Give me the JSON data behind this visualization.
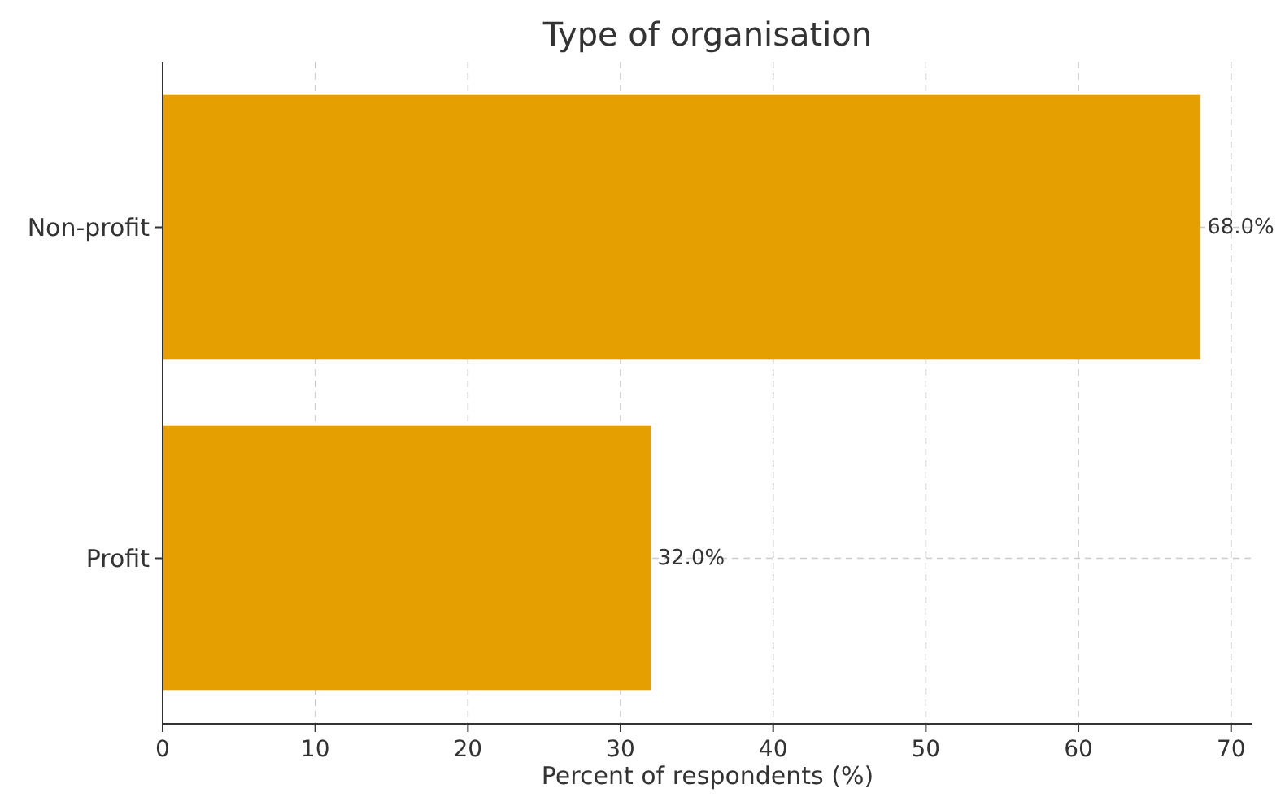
{
  "chart_data": {
    "type": "bar",
    "orientation": "horizontal",
    "title": "Type of organisation",
    "xlabel": "Percent of respondents (%)",
    "categories": [
      "Non-profit",
      "Profit"
    ],
    "values": [
      68,
      32
    ],
    "value_labels": [
      "68.0%",
      "32.0%"
    ],
    "color": "#e69f00",
    "xlim": [
      0,
      71.4
    ],
    "xticks": [
      0,
      10,
      20,
      30,
      40,
      50,
      60,
      70
    ],
    "grid": true
  }
}
